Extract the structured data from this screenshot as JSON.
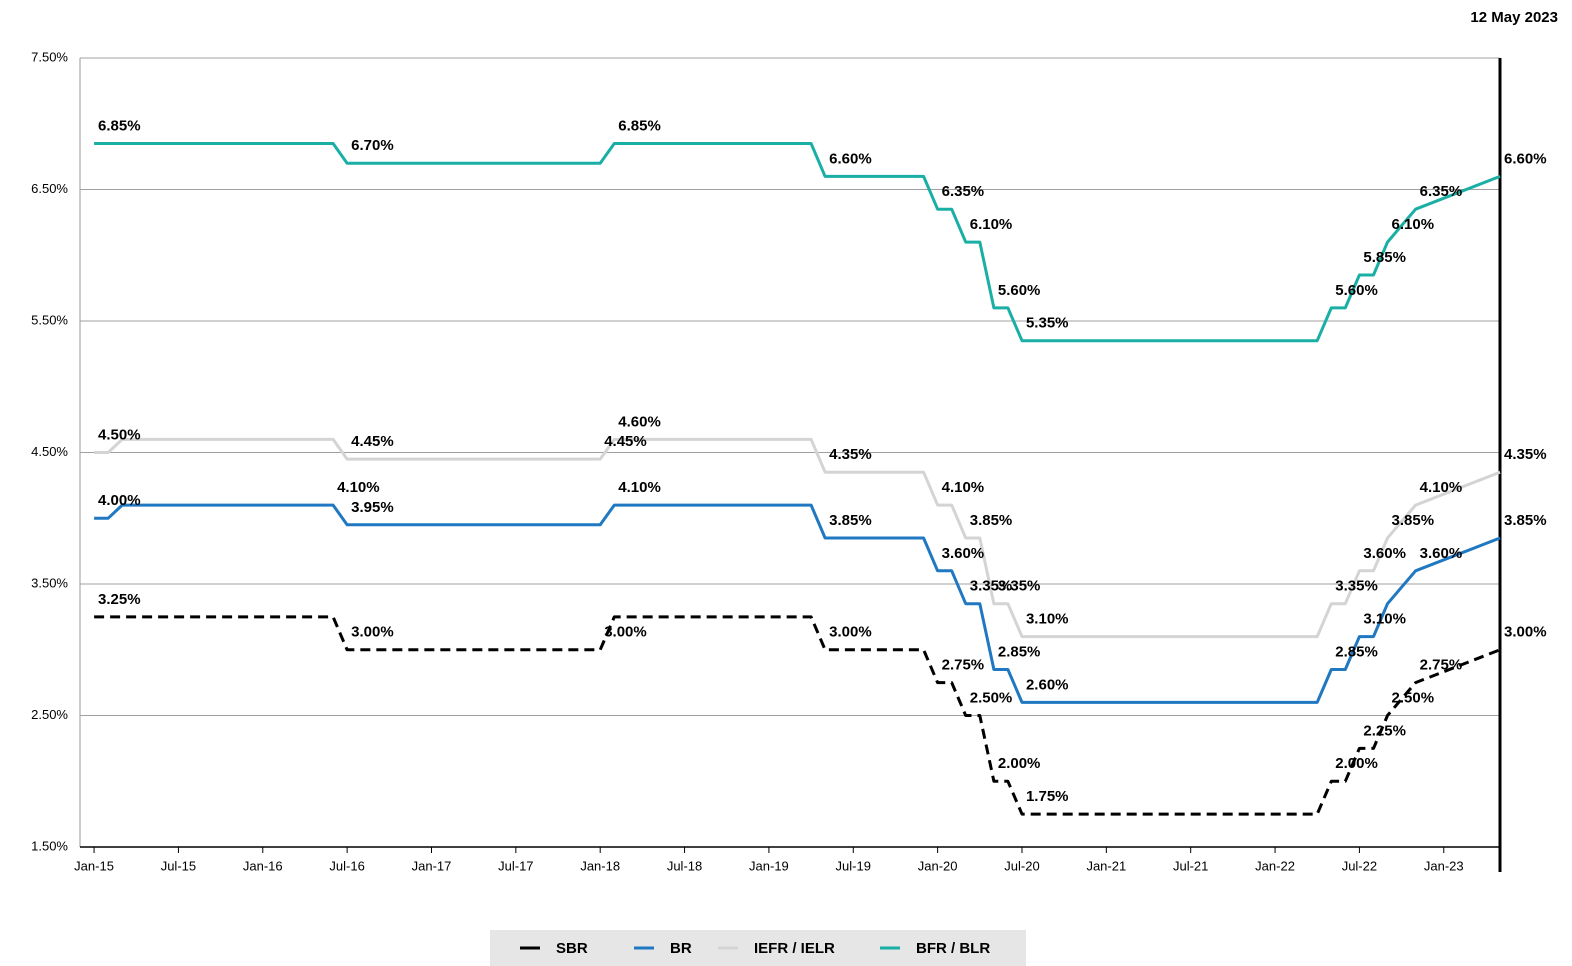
{
  "chart_data": {
    "type": "line",
    "annotation": "12 May 2023",
    "x": [
      "2015-01",
      "2015-02",
      "2015-03",
      "2016-06",
      "2016-07",
      "2018-01",
      "2018-02",
      "2019-04",
      "2019-05",
      "2019-12",
      "2020-01",
      "2020-02",
      "2020-03",
      "2020-04",
      "2020-05",
      "2020-06",
      "2020-07",
      "2022-04",
      "2022-05",
      "2022-06",
      "2022-07",
      "2022-08",
      "2022-09",
      "2022-11",
      "2023-05"
    ],
    "xlim": [
      "2014-12",
      "2023-05"
    ],
    "xticks": [
      {
        "value": "2015-01",
        "label": "Jan-15"
      },
      {
        "value": "2015-07",
        "label": "Jul-15"
      },
      {
        "value": "2016-01",
        "label": "Jan-16"
      },
      {
        "value": "2016-07",
        "label": "Jul-16"
      },
      {
        "value": "2017-01",
        "label": "Jan-17"
      },
      {
        "value": "2017-07",
        "label": "Jul-17"
      },
      {
        "value": "2018-01",
        "label": "Jan-18"
      },
      {
        "value": "2018-07",
        "label": "Jul-18"
      },
      {
        "value": "2019-01",
        "label": "Jan-19"
      },
      {
        "value": "2019-07",
        "label": "Jul-19"
      },
      {
        "value": "2020-01",
        "label": "Jan-20"
      },
      {
        "value": "2020-07",
        "label": "Jul-20"
      },
      {
        "value": "2021-01",
        "label": "Jan-21"
      },
      {
        "value": "2021-07",
        "label": "Jul-21"
      },
      {
        "value": "2022-01",
        "label": "Jan-22"
      },
      {
        "value": "2022-07",
        "label": "Jul-22"
      },
      {
        "value": "2023-01",
        "label": "Jan-23"
      }
    ],
    "ylim": [
      1.5,
      7.5
    ],
    "yticks": [
      {
        "value": 1.5,
        "label": "1.50%"
      },
      {
        "value": 2.5,
        "label": "2.50%"
      },
      {
        "value": 3.5,
        "label": "3.50%"
      },
      {
        "value": 4.5,
        "label": "4.50%"
      },
      {
        "value": 5.5,
        "label": "5.50%"
      },
      {
        "value": 6.5,
        "label": "6.50%"
      },
      {
        "value": 7.5,
        "label": "7.50%"
      }
    ],
    "grid": true,
    "legend": "bottom",
    "series": [
      {
        "name": "SBR",
        "color": "#000000",
        "line_style": "dashed",
        "values": [
          3.25,
          3.25,
          3.25,
          3.25,
          3.0,
          3.0,
          3.25,
          3.25,
          3.0,
          3.0,
          2.75,
          2.75,
          2.5,
          2.5,
          2.0,
          2.0,
          1.75,
          1.75,
          2.0,
          2.0,
          2.25,
          2.25,
          2.5,
          2.75,
          3.0
        ],
        "value_labels": [
          "3.25%",
          null,
          null,
          null,
          "3.00%",
          "3.00%",
          null,
          null,
          "3.00%",
          null,
          "2.75%",
          null,
          "2.50%",
          null,
          "2.00%",
          null,
          "1.75%",
          null,
          "2.00%",
          null,
          "2.25%",
          null,
          "2.50%",
          "2.75%",
          "3.00%"
        ]
      },
      {
        "name": "BR",
        "color": "#1f78c1",
        "values": [
          4.0,
          4.0,
          4.1,
          4.1,
          3.95,
          3.95,
          4.1,
          4.1,
          3.85,
          3.85,
          3.6,
          3.6,
          3.35,
          3.35,
          2.85,
          2.85,
          2.6,
          2.6,
          2.85,
          2.85,
          3.1,
          3.1,
          3.35,
          3.6,
          3.85
        ],
        "value_labels": [
          "4.00%",
          null,
          null,
          "4.10%",
          "3.95%",
          null,
          "4.10%",
          null,
          "3.85%",
          null,
          "3.60%",
          null,
          "3.35%",
          null,
          "2.85%",
          null,
          "2.60%",
          null,
          "2.85%",
          null,
          "3.10%",
          null,
          null,
          "3.60%",
          "3.85%"
        ]
      },
      {
        "name": "IEFR / IELR",
        "color": "#d4d4d4",
        "values": [
          4.5,
          4.5,
          4.6,
          4.6,
          4.45,
          4.45,
          4.6,
          4.6,
          4.35,
          4.35,
          4.1,
          4.1,
          3.85,
          3.85,
          3.35,
          3.35,
          3.1,
          3.1,
          3.35,
          3.35,
          3.6,
          3.6,
          3.85,
          4.1,
          4.35
        ],
        "value_labels": [
          "4.50%",
          null,
          null,
          null,
          "4.45%",
          "4.45%",
          "4.60%",
          null,
          "4.35%",
          null,
          "4.10%",
          null,
          "3.85%",
          null,
          "3.35%",
          null,
          "3.10%",
          null,
          "3.35%",
          null,
          "3.60%",
          null,
          "3.85%",
          "4.10%",
          "4.35%"
        ]
      },
      {
        "name": "BFR / BLR",
        "color": "#1aafa5",
        "values": [
          6.85,
          6.85,
          6.85,
          6.85,
          6.7,
          6.7,
          6.85,
          6.85,
          6.6,
          6.6,
          6.35,
          6.35,
          6.1,
          6.1,
          5.6,
          5.6,
          5.35,
          5.35,
          5.6,
          5.6,
          5.85,
          5.85,
          6.1,
          6.35,
          6.6
        ],
        "value_labels": [
          "6.85%",
          null,
          null,
          null,
          "6.70%",
          null,
          "6.85%",
          null,
          "6.60%",
          null,
          "6.35%",
          null,
          "6.10%",
          null,
          "5.60%",
          null,
          "5.35%",
          null,
          "5.60%",
          null,
          "5.85%",
          null,
          "6.10%",
          "6.35%",
          "6.60%"
        ]
      }
    ]
  }
}
